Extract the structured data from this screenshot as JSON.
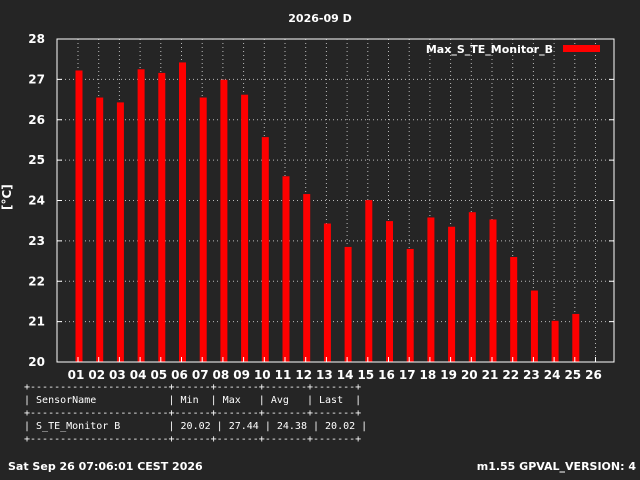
{
  "chart_data": {
    "type": "bar",
    "title": "2026-09 D",
    "ylabel": "[°C]",
    "xlabel": "",
    "ylim": [
      20,
      28
    ],
    "yticks": [
      "20",
      "21",
      "22",
      "23",
      "24",
      "25",
      "26",
      "27",
      "28"
    ],
    "categories": [
      "01",
      "02",
      "03",
      "04",
      "05",
      "06",
      "07",
      "08",
      "09",
      "10",
      "11",
      "12",
      "13",
      "14",
      "15",
      "16",
      "17",
      "18",
      "19",
      "20",
      "21",
      "22",
      "23",
      "24",
      "25",
      "26"
    ],
    "series": [
      {
        "name": "Max_S_TE_Monitor_B",
        "color": "#ff0000",
        "values": [
          27.22,
          26.55,
          26.43,
          27.25,
          27.16,
          27.42,
          26.55,
          26.99,
          26.62,
          25.57,
          24.6,
          24.16,
          23.43,
          22.85,
          24.01,
          23.49,
          22.8,
          23.58,
          23.35,
          23.71,
          23.53,
          22.6,
          21.77,
          21.02,
          21.19,
          null
        ]
      }
    ],
    "grid": true,
    "legend": "top-right"
  },
  "stats_table": {
    "border": "+-----------------------+------+-------+-------+-------+",
    "header": "| SensorName            | Min  | Max   | Avg   | Last  |",
    "row": "| S_TE_Monitor B        | 20.02 | 27.44 | 24.38 | 20.02 |"
  },
  "footer": {
    "timestamp": "Sat Sep 26 07:06:01 CEST 2026",
    "version": "m1.55 GPVAL_VERSION: 4"
  }
}
